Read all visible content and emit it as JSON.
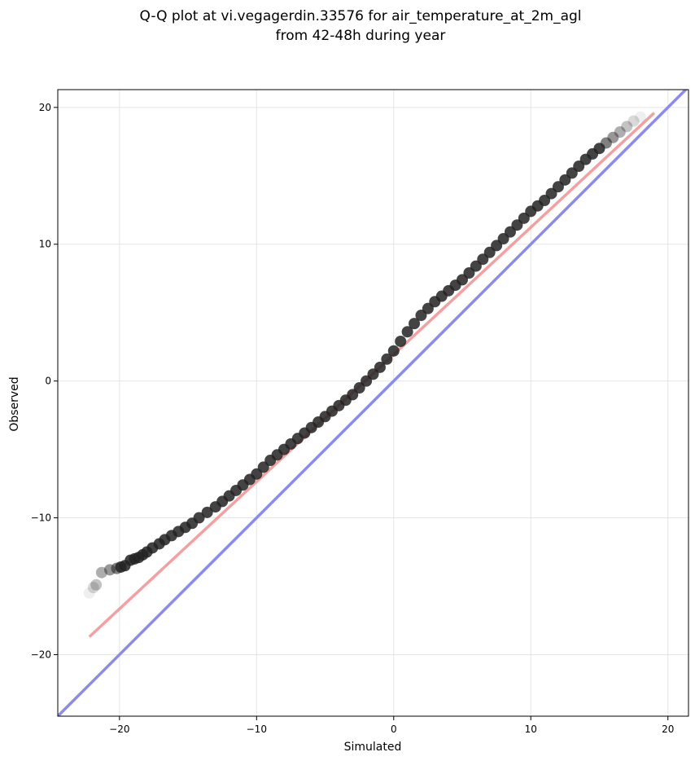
{
  "chart_data": {
    "type": "scatter",
    "title": [
      "Q-Q plot at vi.vegagerdin.33576 for air_temperature_at_2m_agl",
      "from 42-48h during year"
    ],
    "xlabel": "Simulated",
    "ylabel": "Observed",
    "xlim": [
      -24.5,
      21.5
    ],
    "ylim": [
      -24.5,
      21.3
    ],
    "xticks": [
      -20,
      -10,
      0,
      10,
      20
    ],
    "yticks": [
      -20,
      -10,
      0,
      10,
      20
    ],
    "grid": true,
    "quantile_points": {
      "x": [
        -22.2,
        -21.9,
        -21.7,
        -21.3,
        -20.7,
        -20.2,
        -19.9,
        -19.6,
        -19.2,
        -18.9,
        -18.6,
        -18.3,
        -18.0,
        -17.6,
        -17.1,
        -16.7,
        -16.2,
        -15.7,
        -15.2,
        -14.7,
        -14.2,
        -13.6,
        -13.0,
        -12.5,
        -12.0,
        -11.5,
        -11.0,
        -10.5,
        -10.0,
        -9.5,
        -9.0,
        -8.5,
        -8.0,
        -7.5,
        -7.0,
        -6.5,
        -6.0,
        -5.5,
        -5.0,
        -4.5,
        -4.0,
        -3.5,
        -3.0,
        -2.5,
        -2.0,
        -1.5,
        -1.0,
        -0.5,
        0.0,
        0.5,
        1.0,
        1.5,
        2.0,
        2.5,
        3.0,
        3.5,
        4.0,
        4.5,
        5.0,
        5.5,
        6.0,
        6.5,
        7.0,
        7.5,
        8.0,
        8.5,
        9.0,
        9.5,
        10.0,
        10.5,
        11.0,
        11.5,
        12.0,
        12.5,
        13.0,
        13.5,
        14.0,
        14.5,
        15.0,
        15.5,
        16.0,
        16.5,
        17.0,
        17.5,
        18.0
      ],
      "y": [
        -15.5,
        -15.1,
        -14.9,
        -14.0,
        -13.8,
        -13.7,
        -13.6,
        -13.5,
        -13.1,
        -13.0,
        -12.9,
        -12.7,
        -12.5,
        -12.2,
        -11.9,
        -11.6,
        -11.3,
        -11.0,
        -10.7,
        -10.4,
        -10.0,
        -9.6,
        -9.2,
        -8.8,
        -8.4,
        -8.0,
        -7.6,
        -7.2,
        -6.8,
        -6.3,
        -5.8,
        -5.4,
        -5.0,
        -4.6,
        -4.2,
        -3.8,
        -3.4,
        -3.0,
        -2.6,
        -2.2,
        -1.8,
        -1.4,
        -1.0,
        -0.5,
        0.0,
        0.5,
        1.0,
        1.6,
        2.2,
        2.9,
        3.6,
        4.2,
        4.8,
        5.3,
        5.8,
        6.2,
        6.6,
        7.0,
        7.4,
        7.9,
        8.4,
        8.9,
        9.4,
        9.9,
        10.4,
        10.9,
        11.4,
        11.9,
        12.4,
        12.8,
        13.2,
        13.7,
        14.2,
        14.7,
        15.2,
        15.7,
        16.2,
        16.6,
        17.0,
        17.4,
        17.8,
        18.2,
        18.6,
        19.0,
        19.3
      ],
      "color": "#222222"
    },
    "fit_line": {
      "x": [
        -22.2,
        19.0
      ],
      "y": [
        -18.7,
        19.6
      ],
      "color": "#f08080"
    },
    "identity_line": {
      "x": [
        -24.5,
        21.5
      ],
      "y": [
        -24.5,
        21.5
      ],
      "color": "#8a8af0"
    }
  }
}
